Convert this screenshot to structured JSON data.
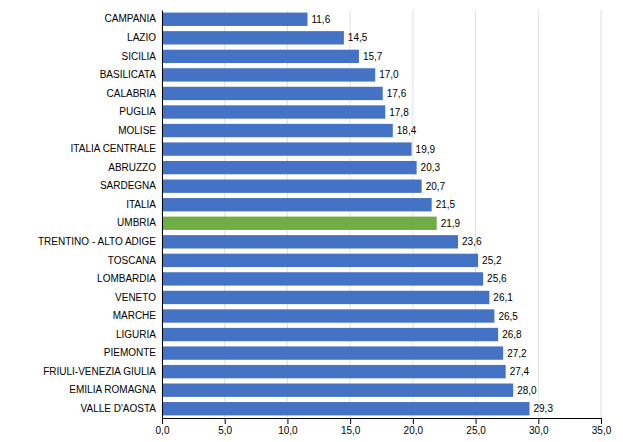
{
  "chart_data": {
    "type": "bar",
    "orientation": "horizontal",
    "categories": [
      "VALLE D'AOSTA",
      "EMILIA ROMAGNA",
      "FRIULI-VENEZIA GIULIA",
      "PIEMONTE",
      "LIGURIA",
      "MARCHE",
      "VENETO",
      "LOMBARDIA",
      "TOSCANA",
      "TRENTINO - ALTO ADIGE",
      "UMBRIA",
      "ITALIA",
      "SARDEGNA",
      "ABRUZZO",
      "ITALIA CENTRALE",
      "MOLISE",
      "PUGLIA",
      "CALABRIA",
      "BASILICATA",
      "SICILIA",
      "LAZIO",
      "CAMPANIA"
    ],
    "values": [
      29.3,
      28.0,
      27.4,
      27.2,
      26.8,
      26.5,
      26.1,
      25.6,
      25.2,
      23.6,
      21.9,
      21.5,
      20.7,
      20.3,
      19.9,
      18.4,
      17.8,
      17.6,
      17.0,
      15.7,
      14.5,
      11.6
    ],
    "value_labels": [
      "29,3",
      "28,0",
      "27,4",
      "27,2",
      "26,8",
      "26,5",
      "26,1",
      "25,6",
      "25,2",
      "23,6",
      "21,9",
      "21,5",
      "20,7",
      "20,3",
      "19,9",
      "18,4",
      "17,8",
      "17,6",
      "17,0",
      "15,7",
      "14,5",
      "11,6"
    ],
    "colors": [
      "#4472C4",
      "#4472C4",
      "#4472C4",
      "#4472C4",
      "#4472C4",
      "#4472C4",
      "#4472C4",
      "#4472C4",
      "#4472C4",
      "#4472C4",
      "#70AD47",
      "#4472C4",
      "#4472C4",
      "#4472C4",
      "#4472C4",
      "#4472C4",
      "#4472C4",
      "#4472C4",
      "#4472C4",
      "#4472C4",
      "#4472C4",
      "#4472C4"
    ],
    "xlim": [
      0,
      35
    ],
    "xticks": [
      {
        "value": 0.0,
        "label": "0,0"
      },
      {
        "value": 5.0,
        "label": "5,0"
      },
      {
        "value": 10.0,
        "label": "10,0"
      },
      {
        "value": 15.0,
        "label": "15,0"
      },
      {
        "value": 20.0,
        "label": "20,0"
      },
      {
        "value": 25.0,
        "label": "25,0"
      },
      {
        "value": 30.0,
        "label": "30,0"
      },
      {
        "value": 35.0,
        "label": "35,0"
      }
    ],
    "grid": true,
    "data_labels": true
  }
}
